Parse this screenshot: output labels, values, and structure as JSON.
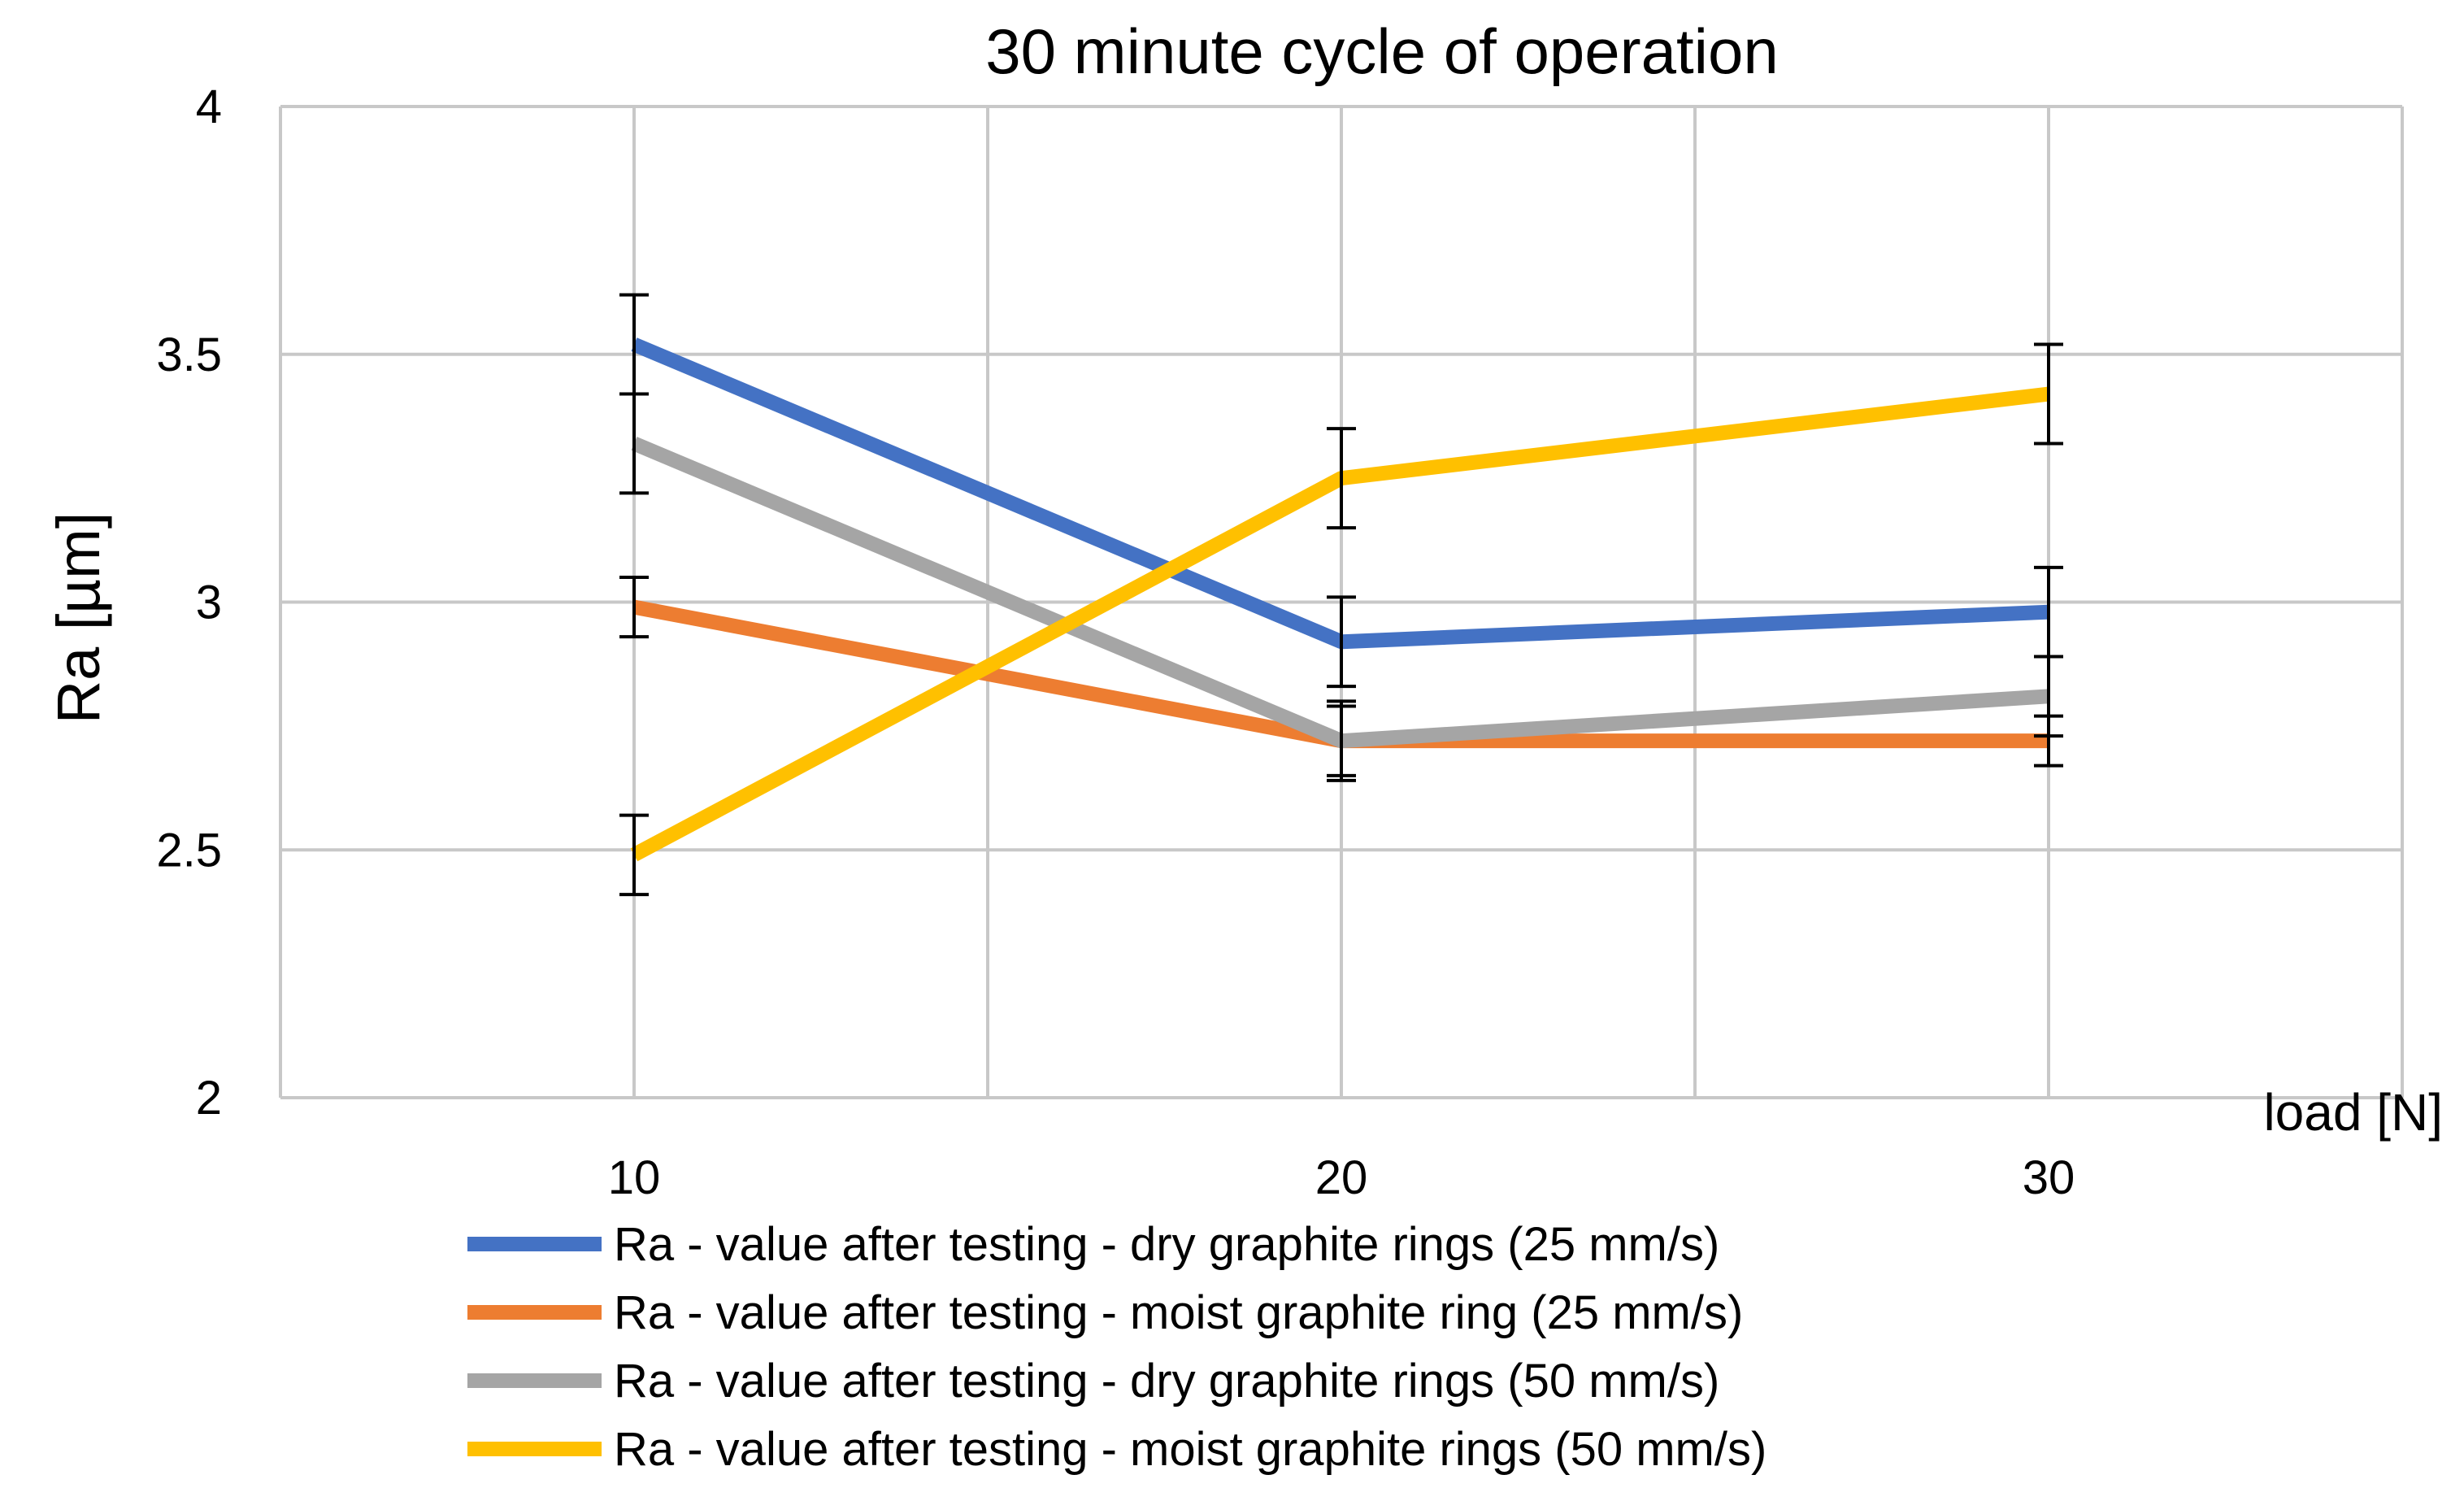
{
  "chart_data": {
    "type": "line",
    "title": "30 minute cycle of operation",
    "xlabel": "load [N]",
    "ylabel": "Ra [µm]",
    "categories": [
      "10",
      "20",
      "30"
    ],
    "ylim": [
      2,
      4
    ],
    "yticks": [
      "2",
      "2.5",
      "3",
      "3.5",
      "4"
    ],
    "grid": true,
    "legend_position": "bottom",
    "series": [
      {
        "name": "Ra - value after testing - dry graphite rings (25 mm/s)",
        "color": "#4472C4",
        "values": [
          3.52,
          2.92,
          2.98
        ],
        "errors": [
          0.1,
          0.09,
          0.09
        ]
      },
      {
        "name": "Ra - value after testing - moist graphite ring (25 mm/s)",
        "color": "#ED7D31",
        "values": [
          2.99,
          2.72,
          2.72
        ],
        "errors": [
          0.06,
          0.07,
          0.05
        ]
      },
      {
        "name": "Ra - value after testing - dry graphite rings (50 mm/s)",
        "color": "#A5A5A5",
        "values": [
          3.32,
          2.72,
          2.81
        ],
        "errors": [
          0.1,
          0.08,
          0.08
        ]
      },
      {
        "name": "Ra - value after testing - moist graphite rings (50 mm/s)",
        "color": "#FFC000",
        "values": [
          2.49,
          3.25,
          3.42
        ],
        "errors": [
          0.08,
          0.1,
          0.1
        ]
      }
    ]
  }
}
